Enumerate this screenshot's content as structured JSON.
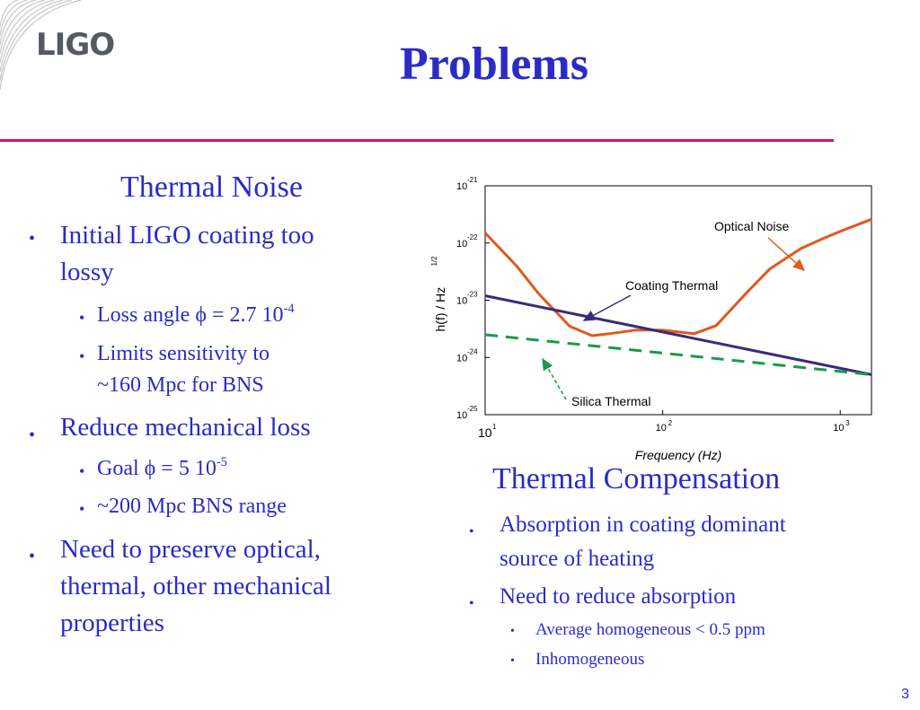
{
  "logo": "LIGO",
  "title": "Problems",
  "left": {
    "heading": "Thermal Noise",
    "b1": "Initial LIGO coating too",
    "b1b": "lossy",
    "s1_pre": "Loss angle ",
    "s1_phi": "ϕ",
    "s1_post": " = 2.7 10",
    "s1_exp": "-4",
    "s2": "Limits sensitivity to",
    "s2b": "~160 Mpc for BNS",
    "b2": "Reduce mechanical loss",
    "s3_pre": "Goal ",
    "s3_phi": "ϕ",
    "s3_post": " = 5 10",
    "s3_exp": "-5",
    "s4": "~200 Mpc BNS range",
    "b3": "Need to preserve optical,",
    "b3b": "thermal, other mechanical",
    "b3c": "properties"
  },
  "right": {
    "heading": "Thermal Compensation",
    "b1": "Absorption in coating dominant",
    "b1b": "source of  heating",
    "b2": "Need to reduce absorption",
    "s1": "Average homogeneous  < 0.5 ppm",
    "s2": "Inhomogeneous"
  },
  "page_number": "3",
  "bullet": "•",
  "chart_data": {
    "type": "line",
    "xlabel": "Frequency (Hz)",
    "ylabel": "h(f) / Hz",
    "ylabel_exp": "1/2",
    "x_scale": "log",
    "y_scale": "log",
    "xlim": [
      10,
      1500
    ],
    "ylim": [
      1e-25,
      1e-21
    ],
    "x_ticks": [
      {
        "base": "10",
        "exp": "1"
      },
      {
        "base": "10",
        "exp": "2"
      },
      {
        "base": "10",
        "exp": "3"
      }
    ],
    "y_ticks": [
      {
        "base": "10",
        "exp": "-21"
      },
      {
        "base": "10",
        "exp": "-22"
      },
      {
        "base": "10",
        "exp": "-23"
      },
      {
        "base": "10",
        "exp": "-24"
      },
      {
        "base": "10",
        "exp": "-25"
      }
    ],
    "colors": {
      "optical": "#e05a1c",
      "coating": "#3a2a7a",
      "silica": "#1a9a4a"
    },
    "series": [
      {
        "name": "Optical Noise",
        "key": "optical",
        "x": [
          10,
          15,
          20,
          30,
          40,
          50,
          70,
          100,
          150,
          200,
          300,
          400,
          600,
          800,
          1000,
          1500
        ],
        "y": [
          1.5e-22,
          4e-23,
          1.3e-23,
          3.5e-24,
          2.4e-24,
          2.6e-24,
          3e-24,
          3e-24,
          2.6e-24,
          3.6e-24,
          1.4e-23,
          3.5e-23,
          8e-23,
          1.2e-22,
          1.6e-22,
          2.6e-22
        ]
      },
      {
        "name": "Coating Thermal",
        "key": "coating",
        "x": [
          10,
          1500
        ],
        "y": [
          1.2e-23,
          5e-25
        ]
      },
      {
        "name": "Silica Thermal",
        "key": "silica",
        "x": [
          10,
          1500
        ],
        "y": [
          2.5e-24,
          5e-25
        ]
      }
    ],
    "labels": {
      "optical": "Optical Noise",
      "coating": "Coating Thermal",
      "silica": "Silica Thermal"
    }
  }
}
